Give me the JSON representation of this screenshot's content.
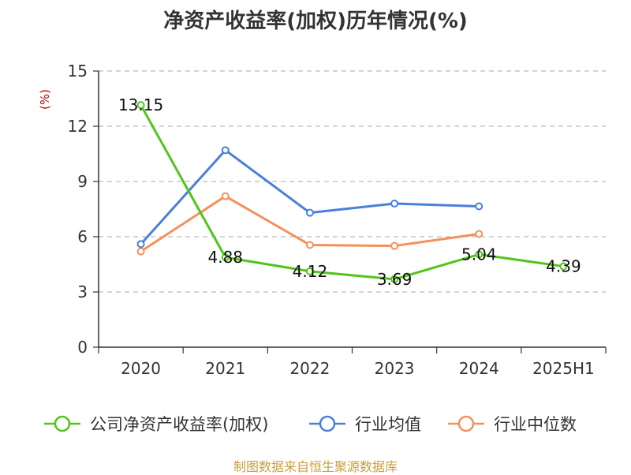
{
  "chart_data": {
    "type": "line",
    "title": "净资产收益率(加权)历年情况(%)",
    "ylabel": "(%)",
    "categories": [
      "2020",
      "2021",
      "2022",
      "2023",
      "2024",
      "2025H1"
    ],
    "ylim": [
      0,
      15
    ],
    "yticks": [
      0,
      3,
      6,
      9,
      12,
      15
    ],
    "grid": true,
    "legend_position": "bottom",
    "series": [
      {
        "name": "公司净资产收益率(加权)",
        "color": "#52c41a",
        "values": [
          13.15,
          4.88,
          4.12,
          3.69,
          5.04,
          4.39
        ],
        "labels": [
          "13.15",
          "4.88",
          "4.12",
          "3.69",
          "5.04",
          "4.39"
        ]
      },
      {
        "name": "行业均值",
        "color": "#4a7fdb",
        "values": [
          5.6,
          10.7,
          7.3,
          7.8,
          7.65,
          null
        ]
      },
      {
        "name": "行业中位数",
        "color": "#f5905a",
        "values": [
          5.2,
          8.2,
          5.55,
          5.5,
          6.15,
          null
        ]
      }
    ]
  },
  "footer": {
    "source": "制图数据来自恒生聚源数据库"
  }
}
